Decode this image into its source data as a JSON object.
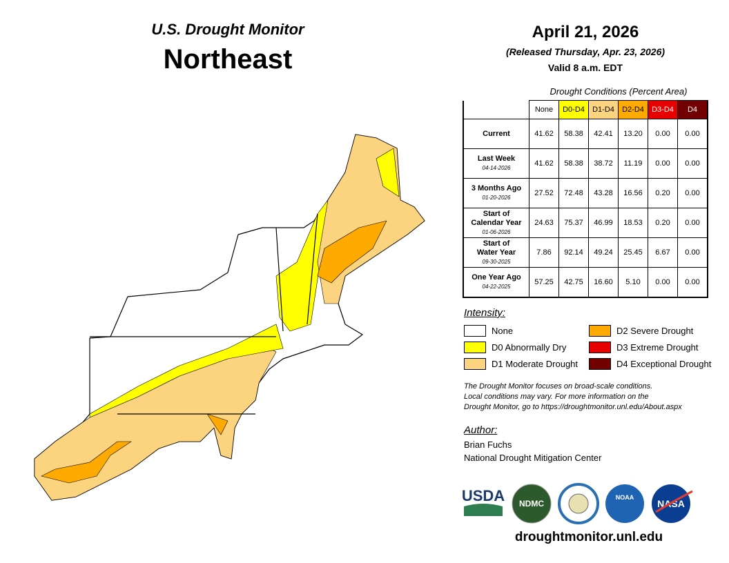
{
  "header": {
    "subtitle": "U.S. Drought Monitor",
    "title": "Northeast"
  },
  "date": {
    "valid_date": "April 21, 2026",
    "released": "(Released Thursday, Apr. 23, 2026)",
    "valid_time": "Valid 8 a.m. EDT"
  },
  "table": {
    "caption": "Drought Conditions (Percent Area)",
    "columns": [
      {
        "label": "None",
        "color": "#ffffff",
        "text_color": "#000000"
      },
      {
        "label": "D0-D4",
        "color": "#ffff00",
        "text_color": "#000000"
      },
      {
        "label": "D1-D4",
        "color": "#fcd37f",
        "text_color": "#000000"
      },
      {
        "label": "D2-D4",
        "color": "#ffaa00",
        "text_color": "#000000"
      },
      {
        "label": "D3-D4",
        "color": "#e60000",
        "text_color": "#ffffff"
      },
      {
        "label": "D4",
        "color": "#730000",
        "text_color": "#ffffff"
      }
    ],
    "rows": [
      {
        "label": [
          "Current"
        ],
        "values": [
          "41.62",
          "58.38",
          "42.41",
          "13.20",
          "0.00",
          "0.00"
        ]
      },
      {
        "label": [
          "Last Week"
        ],
        "date": "04-14-2026",
        "values": [
          "41.62",
          "58.38",
          "38.72",
          "11.19",
          "0.00",
          "0.00"
        ]
      },
      {
        "label": [
          "3 Months Ago"
        ],
        "date": "01-20-2026",
        "values": [
          "27.52",
          "72.48",
          "43.28",
          "16.56",
          "0.20",
          "0.00"
        ]
      },
      {
        "label": [
          "Start of",
          "Calendar Year"
        ],
        "date": "01-06-2026",
        "values": [
          "24.63",
          "75.37",
          "46.99",
          "18.53",
          "0.20",
          "0.00"
        ]
      },
      {
        "label": [
          "Start of",
          "Water Year"
        ],
        "date": "09-30-2025",
        "values": [
          "7.86",
          "92.14",
          "49.24",
          "25.45",
          "6.67",
          "0.00"
        ]
      },
      {
        "label": [
          "One Year Ago"
        ],
        "date": "04-22-2025",
        "values": [
          "57.25",
          "42.75",
          "16.60",
          "5.10",
          "0.00",
          "0.00"
        ]
      }
    ]
  },
  "legend": {
    "title": "Intensity:",
    "items": [
      {
        "label": "None",
        "color": "#ffffff"
      },
      {
        "label": "D0 Abnormally Dry",
        "color": "#ffff00"
      },
      {
        "label": "D1 Moderate Drought",
        "color": "#fcd37f"
      },
      {
        "label": "D2 Severe Drought",
        "color": "#ffaa00"
      },
      {
        "label": "D3 Extreme Drought",
        "color": "#e60000"
      },
      {
        "label": "D4 Exceptional Drought",
        "color": "#730000"
      }
    ]
  },
  "note": [
    "The Drought Monitor focuses on broad-scale conditions.",
    "Local conditions may vary. For more information on the",
    "Drought Monitor, go to https://droughtmonitor.unl.edu/About.aspx"
  ],
  "author": {
    "title": "Author:",
    "name": "Brian Fuchs",
    "organization": "National Drought Mitigation Center"
  },
  "logos": {
    "usda": "USDA",
    "ndmc": "NDMC",
    "noaa": "NOAA",
    "nasa": "NASA"
  },
  "footer": "droughtmonitor.unl.edu"
}
